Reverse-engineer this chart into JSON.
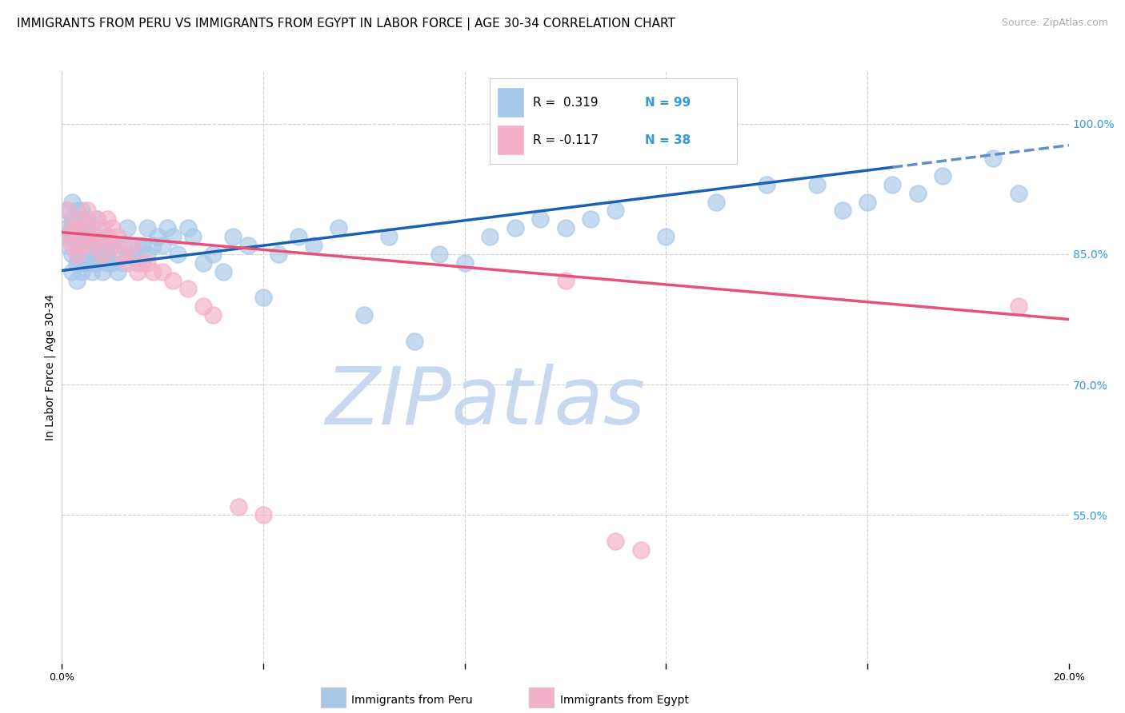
{
  "title": "IMMIGRANTS FROM PERU VS IMMIGRANTS FROM EGYPT IN LABOR FORCE | AGE 30-34 CORRELATION CHART",
  "source": "Source: ZipAtlas.com",
  "ylabel": "In Labor Force | Age 30-34",
  "xlim": [
    0.0,
    0.2
  ],
  "ylim": [
    0.38,
    1.06
  ],
  "ytick_right_labels": [
    "100.0%",
    "85.0%",
    "70.0%",
    "55.0%"
  ],
  "ytick_right_positions": [
    1.0,
    0.85,
    0.7,
    0.55
  ],
  "peru_color": "#a8c8e8",
  "egypt_color": "#f4b0c8",
  "peru_line_color": "#1a5fb4",
  "egypt_line_color": "#e8507a",
  "peru_line_color_dash": "#6090c8",
  "watermark_text": "ZIPatlas",
  "grid_color": "#cccccc",
  "background_color": "#ffffff",
  "title_fontsize": 11,
  "source_fontsize": 9,
  "axis_label_fontsize": 10,
  "tick_fontsize": 9,
  "watermark_color": "#c8d8ee",
  "watermark_fontsize": 72,
  "peru_line_intercept": 0.831,
  "peru_line_slope": 0.72,
  "egypt_line_intercept": 0.875,
  "egypt_line_slope": -0.5,
  "peru_x": [
    0.001,
    0.001,
    0.001,
    0.001,
    0.002,
    0.002,
    0.002,
    0.002,
    0.002,
    0.002,
    0.003,
    0.003,
    0.003,
    0.003,
    0.003,
    0.003,
    0.004,
    0.004,
    0.004,
    0.004,
    0.004,
    0.004,
    0.004,
    0.005,
    0.005,
    0.005,
    0.005,
    0.005,
    0.006,
    0.006,
    0.006,
    0.006,
    0.006,
    0.007,
    0.007,
    0.007,
    0.007,
    0.007,
    0.008,
    0.008,
    0.008,
    0.008,
    0.009,
    0.009,
    0.009,
    0.01,
    0.01,
    0.011,
    0.011,
    0.012,
    0.012,
    0.013,
    0.013,
    0.014,
    0.015,
    0.015,
    0.016,
    0.017,
    0.017,
    0.018,
    0.019,
    0.02,
    0.021,
    0.022,
    0.023,
    0.025,
    0.026,
    0.028,
    0.03,
    0.032,
    0.034,
    0.037,
    0.04,
    0.043,
    0.047,
    0.05,
    0.055,
    0.06,
    0.065,
    0.07,
    0.075,
    0.08,
    0.085,
    0.09,
    0.095,
    0.1,
    0.105,
    0.11,
    0.12,
    0.13,
    0.14,
    0.15,
    0.155,
    0.16,
    0.165,
    0.17,
    0.175,
    0.185,
    0.19
  ],
  "peru_y": [
    0.86,
    0.87,
    0.88,
    0.9,
    0.83,
    0.85,
    0.87,
    0.88,
    0.89,
    0.91,
    0.82,
    0.84,
    0.85,
    0.87,
    0.88,
    0.9,
    0.83,
    0.84,
    0.85,
    0.86,
    0.87,
    0.88,
    0.9,
    0.84,
    0.85,
    0.86,
    0.87,
    0.89,
    0.83,
    0.84,
    0.86,
    0.87,
    0.88,
    0.84,
    0.85,
    0.86,
    0.87,
    0.89,
    0.83,
    0.85,
    0.86,
    0.88,
    0.84,
    0.85,
    0.87,
    0.84,
    0.86,
    0.83,
    0.86,
    0.84,
    0.86,
    0.85,
    0.88,
    0.85,
    0.84,
    0.86,
    0.86,
    0.85,
    0.88,
    0.86,
    0.87,
    0.86,
    0.88,
    0.87,
    0.85,
    0.88,
    0.87,
    0.84,
    0.85,
    0.83,
    0.87,
    0.86,
    0.8,
    0.85,
    0.87,
    0.86,
    0.88,
    0.78,
    0.87,
    0.75,
    0.85,
    0.84,
    0.87,
    0.88,
    0.89,
    0.88,
    0.89,
    0.9,
    0.87,
    0.91,
    0.93,
    0.93,
    0.9,
    0.91,
    0.93,
    0.92,
    0.94,
    0.96,
    0.92
  ],
  "egypt_x": [
    0.001,
    0.001,
    0.002,
    0.002,
    0.003,
    0.003,
    0.004,
    0.004,
    0.005,
    0.005,
    0.006,
    0.006,
    0.007,
    0.007,
    0.008,
    0.009,
    0.009,
    0.01,
    0.01,
    0.011,
    0.012,
    0.013,
    0.014,
    0.015,
    0.016,
    0.017,
    0.018,
    0.02,
    0.022,
    0.025,
    0.028,
    0.03,
    0.035,
    0.04,
    0.1,
    0.11,
    0.115,
    0.19
  ],
  "egypt_y": [
    0.87,
    0.9,
    0.86,
    0.88,
    0.85,
    0.88,
    0.86,
    0.89,
    0.87,
    0.9,
    0.86,
    0.88,
    0.87,
    0.89,
    0.85,
    0.87,
    0.89,
    0.86,
    0.88,
    0.87,
    0.85,
    0.84,
    0.86,
    0.83,
    0.84,
    0.84,
    0.83,
    0.83,
    0.82,
    0.81,
    0.79,
    0.78,
    0.56,
    0.55,
    0.82,
    0.52,
    0.51,
    0.79
  ]
}
